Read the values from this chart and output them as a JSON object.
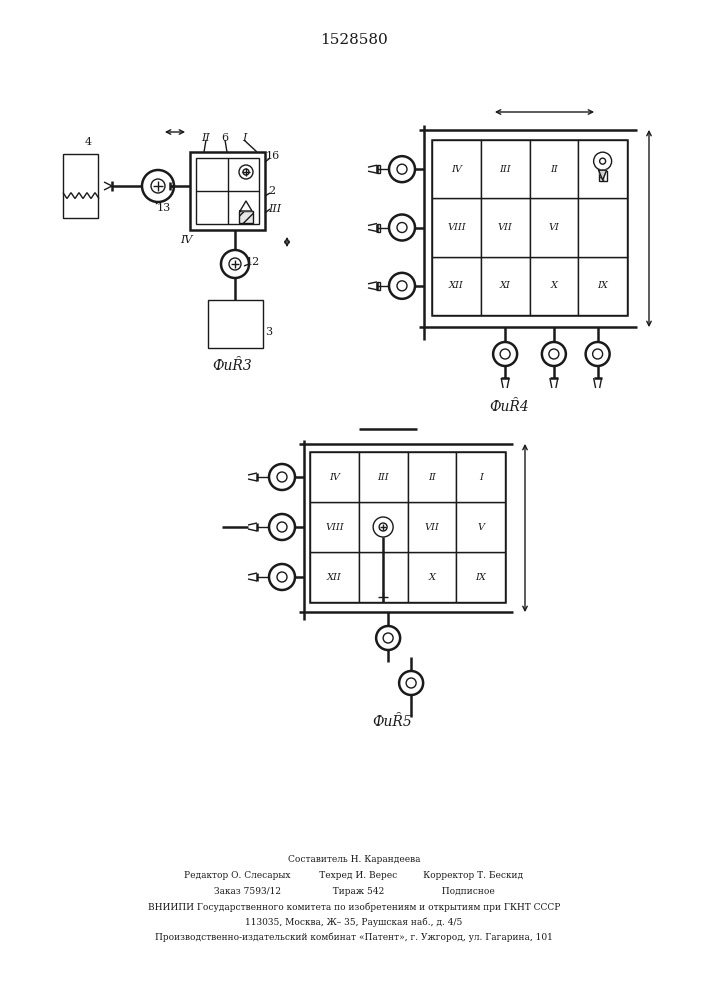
{
  "title": "1528580",
  "title_fontsize": 10,
  "bg_color": "#ffffff",
  "line_color": "#1a1a1a",
  "fig3_label": "ФиȒ3",
  "fig4_label": "ФиȒ4",
  "fig5_label": "ФиȒ5",
  "fig4_grid": [
    [
      "IV",
      "III",
      "II",
      ""
    ],
    [
      "VIII",
      "VII",
      "VI",
      ""
    ],
    [
      "XII",
      "XI",
      "X",
      "IX"
    ]
  ],
  "fig5_grid": [
    [
      "IV",
      "III",
      "II",
      "I"
    ],
    [
      "VIII",
      "",
      "VII",
      "V"
    ],
    [
      "XII",
      "",
      "X",
      "IX"
    ]
  ],
  "footer_lines": [
    "Составитель Н. Карандеева",
    "Редактор О. Слесарых          Техред И. Верес         Корректор Т. Бескид",
    "Заказ 7593/12                  Тираж 542                    Подписное",
    "ВНИИПИ Государственного комитета по изобретениям и открытиям при ГКНТ СССР",
    "113035, Москва, Ж– 35, Раушская наб., д. 4/5",
    "Производственно-издательский комбинат «Патент», г. Ужгород, ул. Гагарина, 101"
  ]
}
